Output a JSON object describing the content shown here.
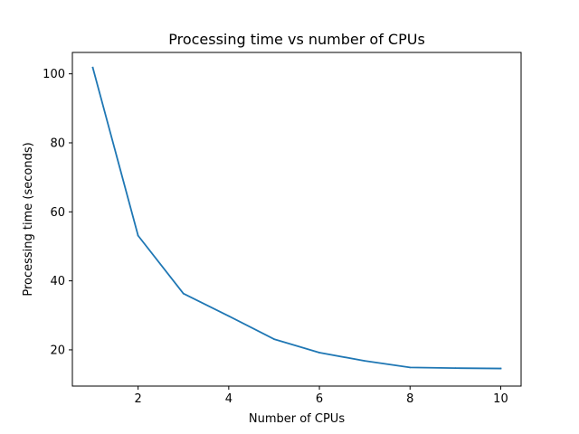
{
  "chart_data": {
    "type": "line",
    "title": "Processing time vs number of CPUs",
    "xlabel": "Number of CPUs",
    "ylabel": "Processing time (seconds)",
    "xlim": [
      0.55,
      10.45
    ],
    "ylim": [
      9.5,
      106.2
    ],
    "xticks": [
      2,
      4,
      6,
      8,
      10
    ],
    "yticks": [
      20,
      40,
      60,
      80,
      100
    ],
    "grid": false,
    "series": [
      {
        "color": "#1f77b4",
        "x": [
          1,
          2,
          3,
          4,
          5,
          6,
          7,
          8,
          9,
          10
        ],
        "y": [
          101.8,
          53.1,
          36.3,
          29.8,
          23.1,
          19.2,
          16.8,
          14.9,
          14.7,
          14.6
        ]
      }
    ]
  }
}
